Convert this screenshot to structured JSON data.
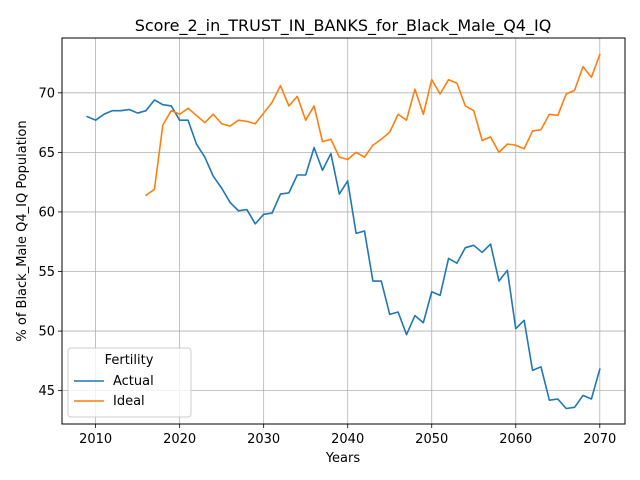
{
  "chart_data": {
    "type": "line",
    "title": "Score_2_in_TRUST_IN_BANKS_for_Black_Male_Q4_IQ",
    "xlabel": "Years",
    "ylabel": "% of Black_Male Q4_IQ Population",
    "xlim": [
      2006,
      2073
    ],
    "ylim": [
      42.2,
      74.6
    ],
    "xticks": [
      2010,
      2020,
      2030,
      2040,
      2050,
      2060,
      2070
    ],
    "yticks": [
      45,
      50,
      55,
      60,
      65,
      70
    ],
    "grid": true,
    "legend": {
      "title": "Fertility",
      "placement": "lower-left"
    },
    "colors": {
      "Actual": "#1f77b4",
      "Ideal": "#ff7f0e"
    },
    "series": [
      {
        "name": "Actual",
        "x": [
          2009,
          2010,
          2011,
          2012,
          2013,
          2014,
          2015,
          2016,
          2017,
          2018,
          2019,
          2020,
          2021,
          2022,
          2023,
          2024,
          2025,
          2026,
          2027,
          2028,
          2029,
          2030,
          2031,
          2032,
          2033,
          2034,
          2035,
          2036,
          2037,
          2038,
          2039,
          2040,
          2041,
          2042,
          2043,
          2044,
          2045,
          2046,
          2047,
          2048,
          2049,
          2050,
          2051,
          2052,
          2053,
          2054,
          2055,
          2056,
          2057,
          2058,
          2059,
          2060,
          2061,
          2062,
          2063,
          2064,
          2065,
          2066,
          2067,
          2068,
          2069,
          2070
        ],
        "values": [
          68.0,
          67.7,
          68.2,
          68.5,
          68.5,
          68.6,
          68.3,
          68.5,
          69.4,
          69.0,
          68.9,
          67.7,
          67.7,
          65.7,
          64.6,
          63.0,
          62.0,
          60.8,
          60.1,
          60.2,
          59.0,
          59.8,
          59.9,
          61.5,
          61.6,
          63.1,
          63.1,
          65.4,
          63.5,
          64.9,
          61.5,
          62.6,
          58.2,
          58.4,
          54.2,
          54.2,
          51.4,
          51.6,
          49.7,
          51.3,
          50.7,
          53.3,
          53.0,
          56.1,
          55.7,
          57.0,
          57.2,
          56.6,
          57.3,
          54.2,
          55.1,
          50.2,
          50.9,
          46.7,
          47.0,
          44.2,
          44.3,
          43.5,
          43.6,
          44.6,
          44.3,
          46.8
        ]
      },
      {
        "name": "Ideal",
        "x": [
          2016,
          2017,
          2018,
          2019,
          2020,
          2021,
          2022,
          2023,
          2024,
          2025,
          2026,
          2027,
          2028,
          2029,
          2030,
          2031,
          2032,
          2033,
          2034,
          2035,
          2036,
          2037,
          2038,
          2039,
          2040,
          2041,
          2042,
          2043,
          2044,
          2045,
          2046,
          2047,
          2048,
          2049,
          2050,
          2051,
          2052,
          2053,
          2054,
          2055,
          2056,
          2057,
          2058,
          2059,
          2060,
          2061,
          2062,
          2063,
          2064,
          2065,
          2066,
          2067,
          2068,
          2069,
          2070
        ],
        "values": [
          61.4,
          61.9,
          67.3,
          68.5,
          68.2,
          68.7,
          68.1,
          67.5,
          68.2,
          67.4,
          67.2,
          67.7,
          67.6,
          67.4,
          68.3,
          69.2,
          70.6,
          68.9,
          69.7,
          67.7,
          68.9,
          65.9,
          66.1,
          64.6,
          64.4,
          65.0,
          64.6,
          65.6,
          66.1,
          66.7,
          68.2,
          67.7,
          70.3,
          68.2,
          71.1,
          69.9,
          71.1,
          70.8,
          68.9,
          68.5,
          66.0,
          66.3,
          65.0,
          65.7,
          65.6,
          65.3,
          66.8,
          66.9,
          68.2,
          68.1,
          69.9,
          70.2,
          72.2,
          71.3,
          73.2
        ]
      }
    ]
  }
}
